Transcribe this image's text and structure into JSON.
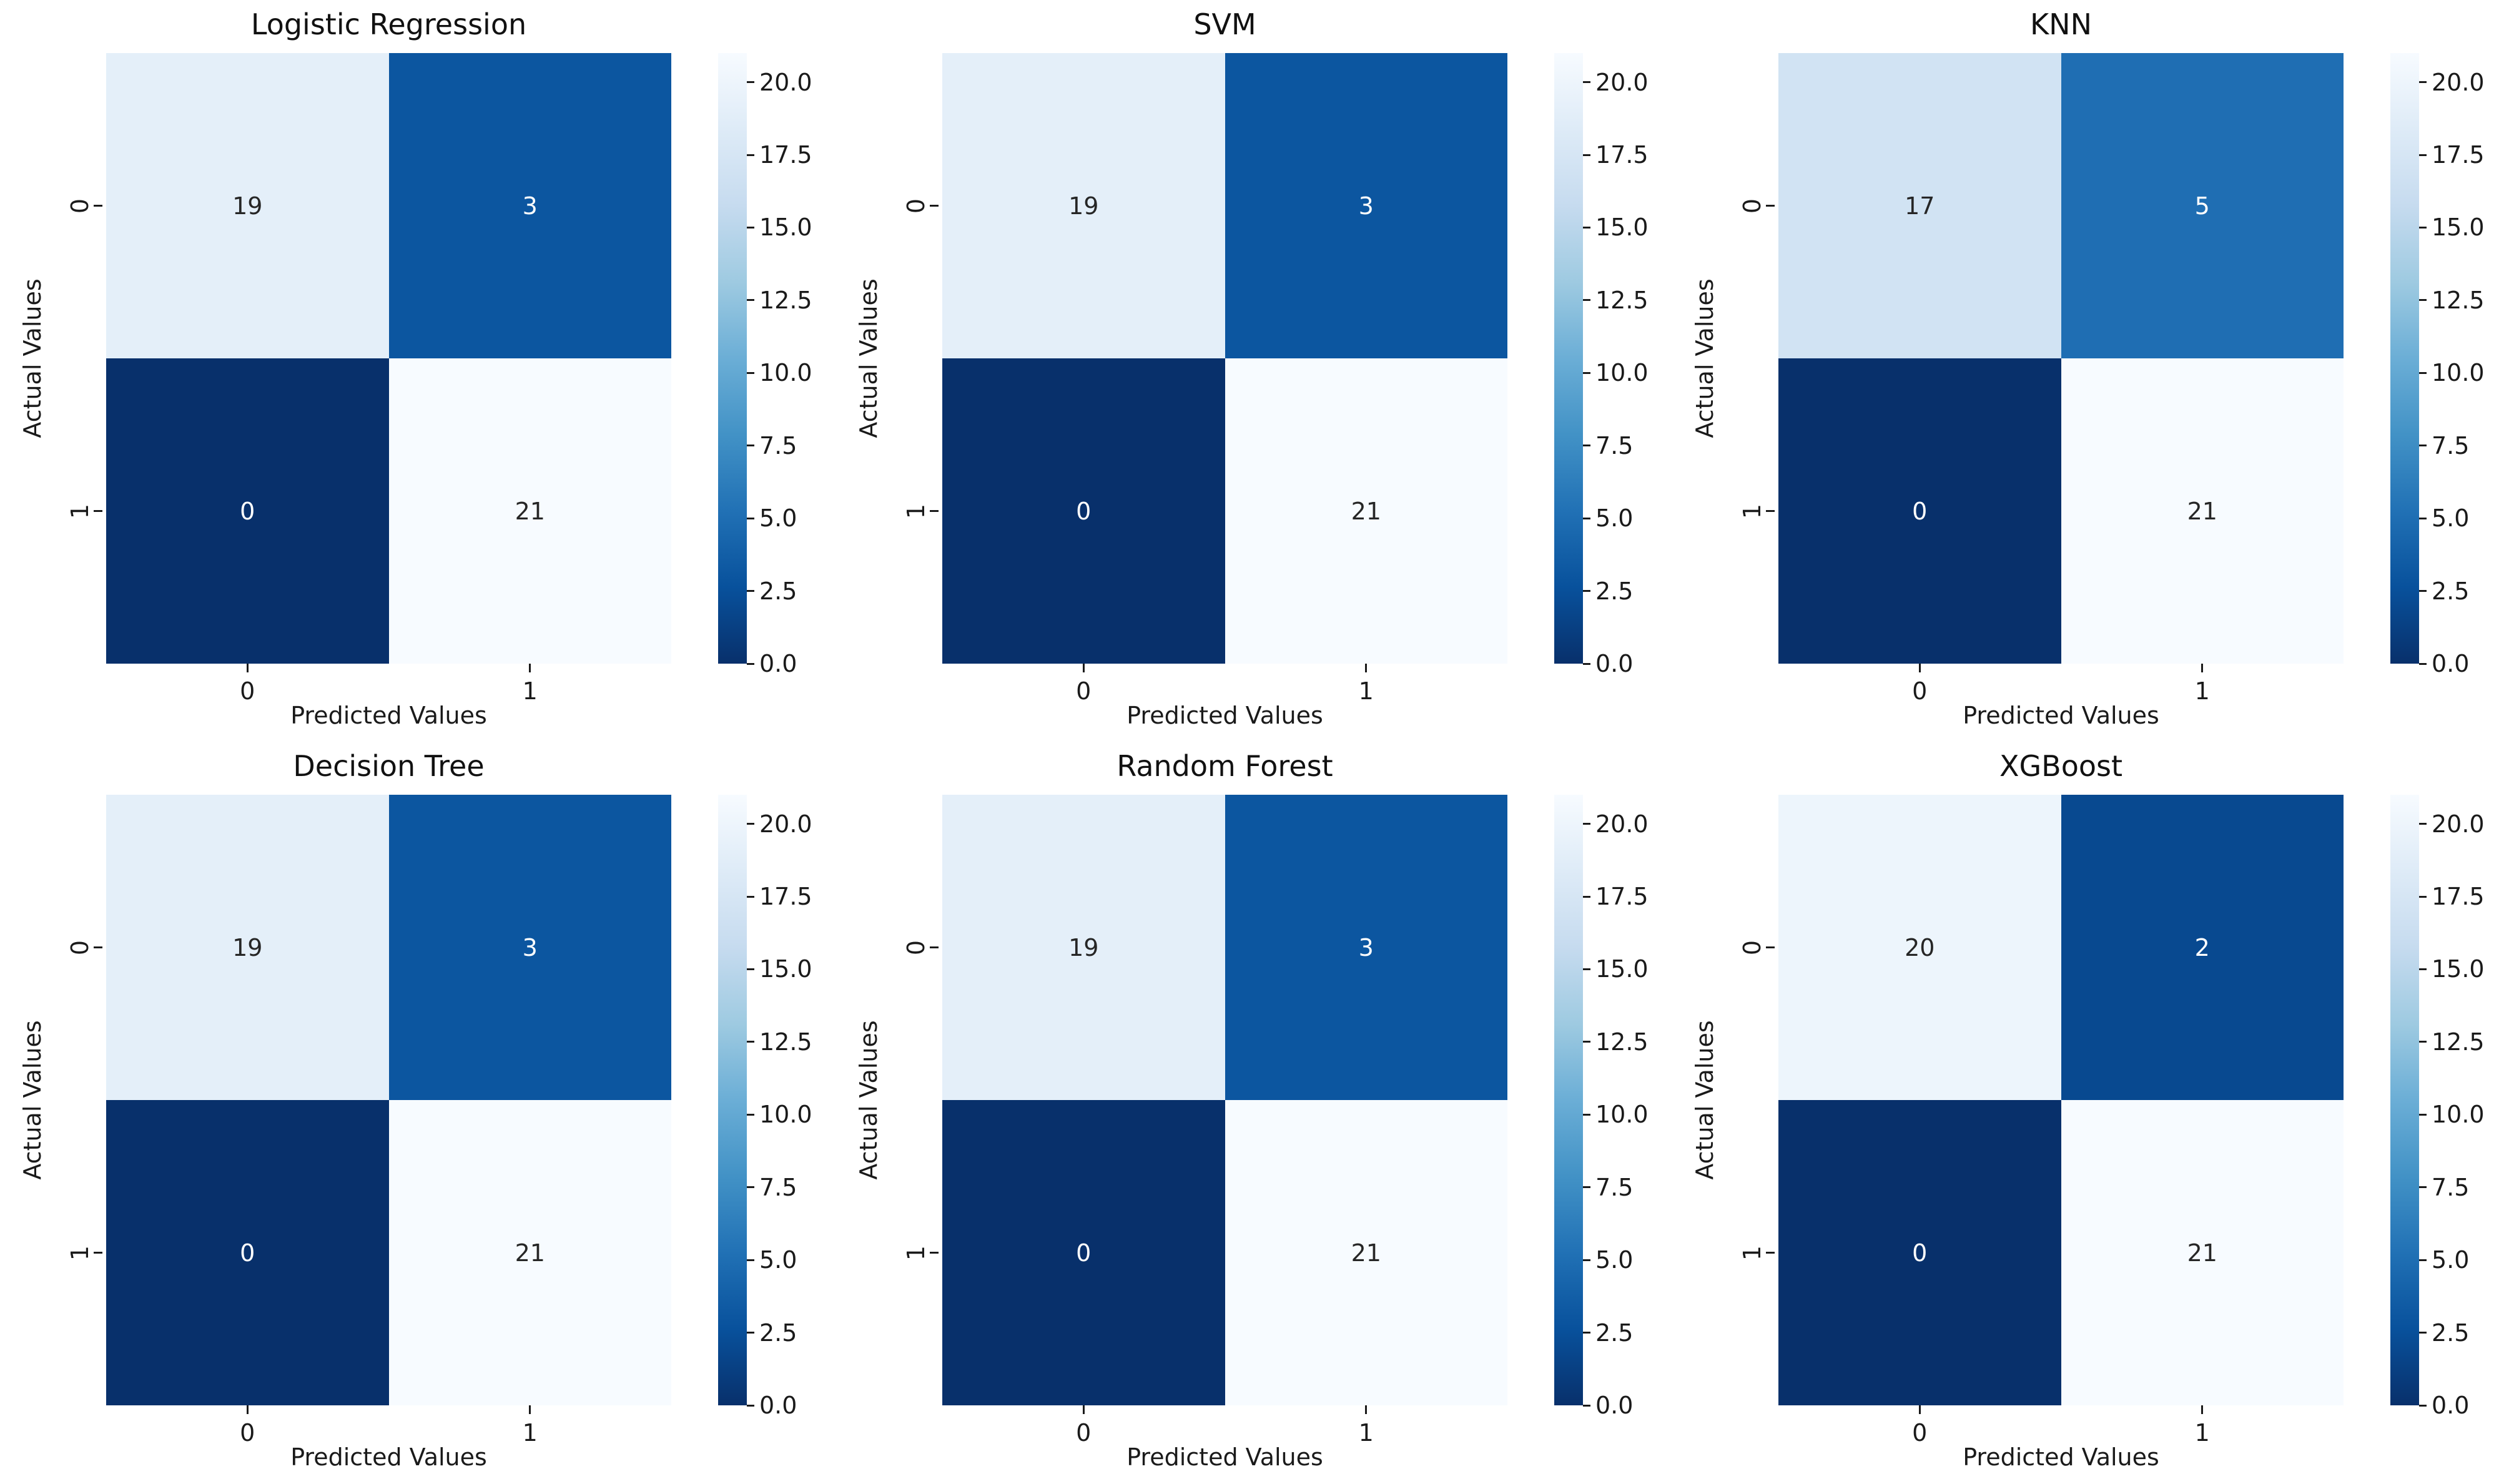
{
  "figure": {
    "background": "#ffffff",
    "text_color": "#1a1a1a",
    "kind": "confusion-matrix-grid",
    "rows": 2,
    "cols": 3
  },
  "colormap": {
    "name": "Blues_r",
    "stops_low_to_high": [
      "#08306b",
      "#08519c",
      "#2171b5",
      "#4292c6",
      "#6baed6",
      "#9ecae1",
      "#c6dbef",
      "#deebf7",
      "#f7fbff"
    ]
  },
  "annotation_colors": {
    "on_dark": "#ffffff",
    "on_light": "#262626"
  },
  "colorbar": {
    "vmin": 0,
    "vmax": 21,
    "tick_values": [
      0.0,
      2.5,
      5.0,
      7.5,
      10.0,
      12.5,
      15.0,
      17.5,
      20.0
    ],
    "tick_labels": [
      "0.0",
      "2.5",
      "5.0",
      "7.5",
      "10.0",
      "12.5",
      "15.0",
      "17.5",
      "20.0"
    ]
  },
  "chart_data": [
    {
      "type": "heatmap",
      "title": "Logistic Regression",
      "matrix": [
        [
          19,
          3
        ],
        [
          0,
          21
        ]
      ],
      "xlabel": "Predicted Values",
      "ylabel": "Actual Values",
      "xticklabels": [
        "0",
        "1"
      ],
      "yticklabels": [
        "0",
        "1"
      ],
      "vmin": 0,
      "vmax": 21,
      "colormap": "Blues_r",
      "colorbar_ticks": [
        "0.0",
        "2.5",
        "5.0",
        "7.5",
        "10.0",
        "12.5",
        "15.0",
        "17.5",
        "20.0"
      ]
    },
    {
      "type": "heatmap",
      "title": "SVM",
      "matrix": [
        [
          19,
          3
        ],
        [
          0,
          21
        ]
      ],
      "xlabel": "Predicted Values",
      "ylabel": "Actual Values",
      "xticklabels": [
        "0",
        "1"
      ],
      "yticklabels": [
        "0",
        "1"
      ],
      "vmin": 0,
      "vmax": 21,
      "colormap": "Blues_r",
      "colorbar_ticks": [
        "0.0",
        "2.5",
        "5.0",
        "7.5",
        "10.0",
        "12.5",
        "15.0",
        "17.5",
        "20.0"
      ]
    },
    {
      "type": "heatmap",
      "title": "KNN",
      "matrix": [
        [
          17,
          5
        ],
        [
          0,
          21
        ]
      ],
      "xlabel": "Predicted Values",
      "ylabel": "Actual Values",
      "xticklabels": [
        "0",
        "1"
      ],
      "yticklabels": [
        "0",
        "1"
      ],
      "vmin": 0,
      "vmax": 21,
      "colormap": "Blues_r",
      "colorbar_ticks": [
        "0.0",
        "2.5",
        "5.0",
        "7.5",
        "10.0",
        "12.5",
        "15.0",
        "17.5",
        "20.0"
      ]
    },
    {
      "type": "heatmap",
      "title": "Decision Tree",
      "matrix": [
        [
          19,
          3
        ],
        [
          0,
          21
        ]
      ],
      "xlabel": "Predicted Values",
      "ylabel": "Actual Values",
      "xticklabels": [
        "0",
        "1"
      ],
      "yticklabels": [
        "0",
        "1"
      ],
      "vmin": 0,
      "vmax": 21,
      "colormap": "Blues_r",
      "colorbar_ticks": [
        "0.0",
        "2.5",
        "5.0",
        "7.5",
        "10.0",
        "12.5",
        "15.0",
        "17.5",
        "20.0"
      ]
    },
    {
      "type": "heatmap",
      "title": "Random Forest",
      "matrix": [
        [
          19,
          3
        ],
        [
          0,
          21
        ]
      ],
      "xlabel": "Predicted Values",
      "ylabel": "Actual Values",
      "xticklabels": [
        "0",
        "1"
      ],
      "yticklabels": [
        "0",
        "1"
      ],
      "vmin": 0,
      "vmax": 21,
      "colormap": "Blues_r",
      "colorbar_ticks": [
        "0.0",
        "2.5",
        "5.0",
        "7.5",
        "10.0",
        "12.5",
        "15.0",
        "17.5",
        "20.0"
      ]
    },
    {
      "type": "heatmap",
      "title": "XGBoost",
      "matrix": [
        [
          20,
          2
        ],
        [
          0,
          21
        ]
      ],
      "xlabel": "Predicted Values",
      "ylabel": "Actual Values",
      "xticklabels": [
        "0",
        "1"
      ],
      "yticklabels": [
        "0",
        "1"
      ],
      "vmin": 0,
      "vmax": 21,
      "colormap": "Blues_r",
      "colorbar_ticks": [
        "0.0",
        "2.5",
        "5.0",
        "7.5",
        "10.0",
        "12.5",
        "15.0",
        "17.5",
        "20.0"
      ]
    }
  ]
}
